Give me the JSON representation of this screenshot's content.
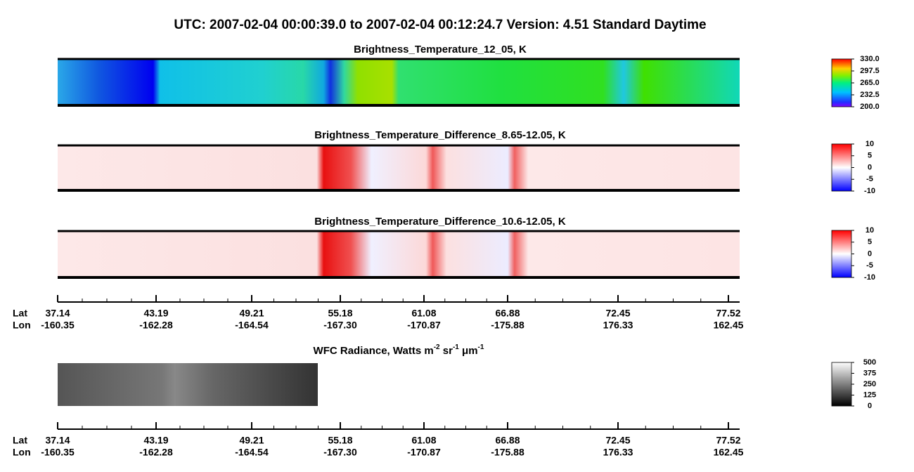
{
  "title": "UTC:  2007-02-04   00:00:39.0  to  2007-02-04   00:12:24.7    Version: 4.51  Standard Daytime",
  "chart_data": [
    {
      "type": "heatmap",
      "title": "Brightness_Temperature_12_05, K",
      "colorbar": {
        "lim": [
          200,
          330
        ],
        "ticks": [
          {
            "value": 200,
            "label": "200.0"
          },
          {
            "value": 232.5,
            "label": "232.5"
          },
          {
            "value": 265,
            "label": "265.0"
          },
          {
            "value": 297.5,
            "label": "297.5"
          },
          {
            "value": 330,
            "label": "330.0"
          }
        ]
      }
    },
    {
      "type": "heatmap",
      "title": "Brightness_Temperature_Difference_8.65-12.05, K",
      "colorbar": {
        "lim": [
          -10,
          10
        ],
        "ticks": [
          -10,
          -5,
          0,
          5,
          10
        ]
      }
    },
    {
      "type": "heatmap",
      "title": "Brightness_Temperature_Difference_10.6-12.05, K",
      "colorbar": {
        "lim": [
          -10,
          10
        ],
        "ticks": [
          -10,
          -5,
          0,
          5,
          10
        ]
      }
    },
    {
      "type": "heatmap",
      "title": [
        "WFC Radiance, Watts m",
        "-2",
        " sr",
        "-1",
        " μm",
        "-1"
      ],
      "colorbar": {
        "lim": [
          0,
          500
        ],
        "ticks": [
          0,
          125,
          250,
          375,
          500
        ]
      }
    }
  ],
  "axis": {
    "lat_label": "Lat",
    "lon_label": "Lon",
    "lat": [
      "37.14",
      "43.19",
      "49.21",
      "55.18",
      "61.08",
      "66.88",
      "72.45",
      "77.52"
    ],
    "lon": [
      "-160.35",
      "-162.28",
      "-164.54",
      "-167.30",
      "-170.87",
      "-175.88",
      "176.33",
      "162.45"
    ]
  }
}
